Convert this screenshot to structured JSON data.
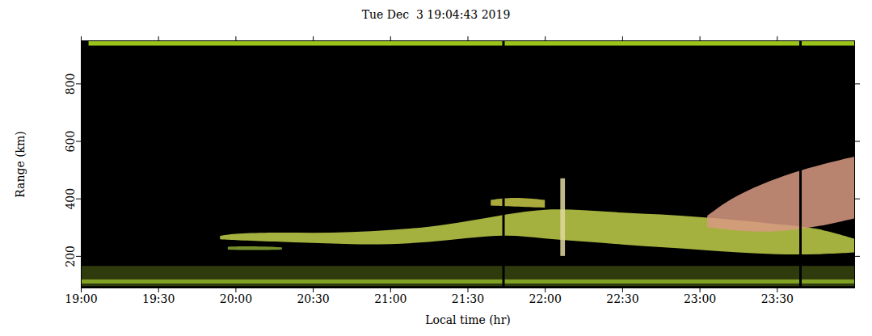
{
  "chart_data": {
    "type": "area",
    "title": "Tue Dec  3 19:04:43 2019",
    "x_label": "Local time (hr)",
    "y_label": "Range (km)",
    "xlim": [
      19,
      24
    ],
    "xticks": [
      {
        "value": 19,
        "label": "19:00"
      },
      {
        "value": 19.5,
        "label": "19:30"
      },
      {
        "value": 20,
        "label": "20:00"
      },
      {
        "value": 20.5,
        "label": "20:30"
      },
      {
        "value": 21,
        "label": "21:00"
      },
      {
        "value": 21.5,
        "label": "21:30"
      },
      {
        "value": 22,
        "label": "22:00"
      },
      {
        "value": 22.5,
        "label": "22:30"
      },
      {
        "value": 23,
        "label": "23:00"
      },
      {
        "value": 23.5,
        "label": "23:30"
      }
    ],
    "ylim": [
      90,
      950
    ],
    "yticks": [
      200,
      400,
      600,
      800
    ],
    "series": [
      {
        "color": "#37450f",
        "x": [
          19,
          24
        ],
        "low": [
          95,
          95
        ],
        "high": [
          165,
          165
        ]
      },
      {
        "color": "#8fb52a",
        "x": [
          19,
          24
        ],
        "low": [
          104,
          104
        ],
        "high": [
          118,
          118
        ]
      },
      {
        "color": "#b5e61d",
        "x": [
          19.05,
          24
        ],
        "low": [
          932,
          932
        ],
        "high": [
          947,
          947
        ]
      },
      {
        "color": "#c2d04a",
        "x": [
          19.9,
          20.0,
          20.25,
          20.5,
          20.75,
          21.0,
          21.25,
          21.5,
          21.75,
          22.0,
          22.25,
          22.5,
          22.75,
          23.0,
          23.25,
          23.5,
          23.75,
          24.0
        ],
        "low": [
          258,
          255,
          250,
          245,
          240,
          240,
          248,
          262,
          275,
          260,
          250,
          240,
          230,
          222,
          212,
          205,
          205,
          212
        ],
        "high": [
          270,
          278,
          282,
          280,
          282,
          290,
          300,
          320,
          345,
          365,
          360,
          350,
          345,
          335,
          325,
          310,
          300,
          260
        ]
      },
      {
        "color": "#8aa832",
        "x": [
          19.95,
          20.1,
          20.3
        ],
        "low": [
          222,
          220,
          222
        ],
        "high": [
          232,
          234,
          230
        ]
      },
      {
        "color": "#c8c848",
        "x": [
          21.65,
          21.8,
          22.0
        ],
        "low": [
          375,
          372,
          368
        ],
        "high": [
          395,
          405,
          395
        ]
      },
      {
        "color": "#d89a82",
        "x": [
          23.05,
          23.2,
          23.4,
          23.6,
          23.8,
          24.0
        ],
        "low": [
          300,
          290,
          282,
          290,
          305,
          330
        ],
        "high": [
          340,
          400,
          450,
          490,
          520,
          545
        ]
      },
      {
        "color": "#e0d8a0",
        "x": [
          22.1,
          22.13
        ],
        "low": [
          200,
          200
        ],
        "high": [
          470,
          470
        ]
      }
    ],
    "gaps": [
      21.73,
      23.65
    ]
  }
}
